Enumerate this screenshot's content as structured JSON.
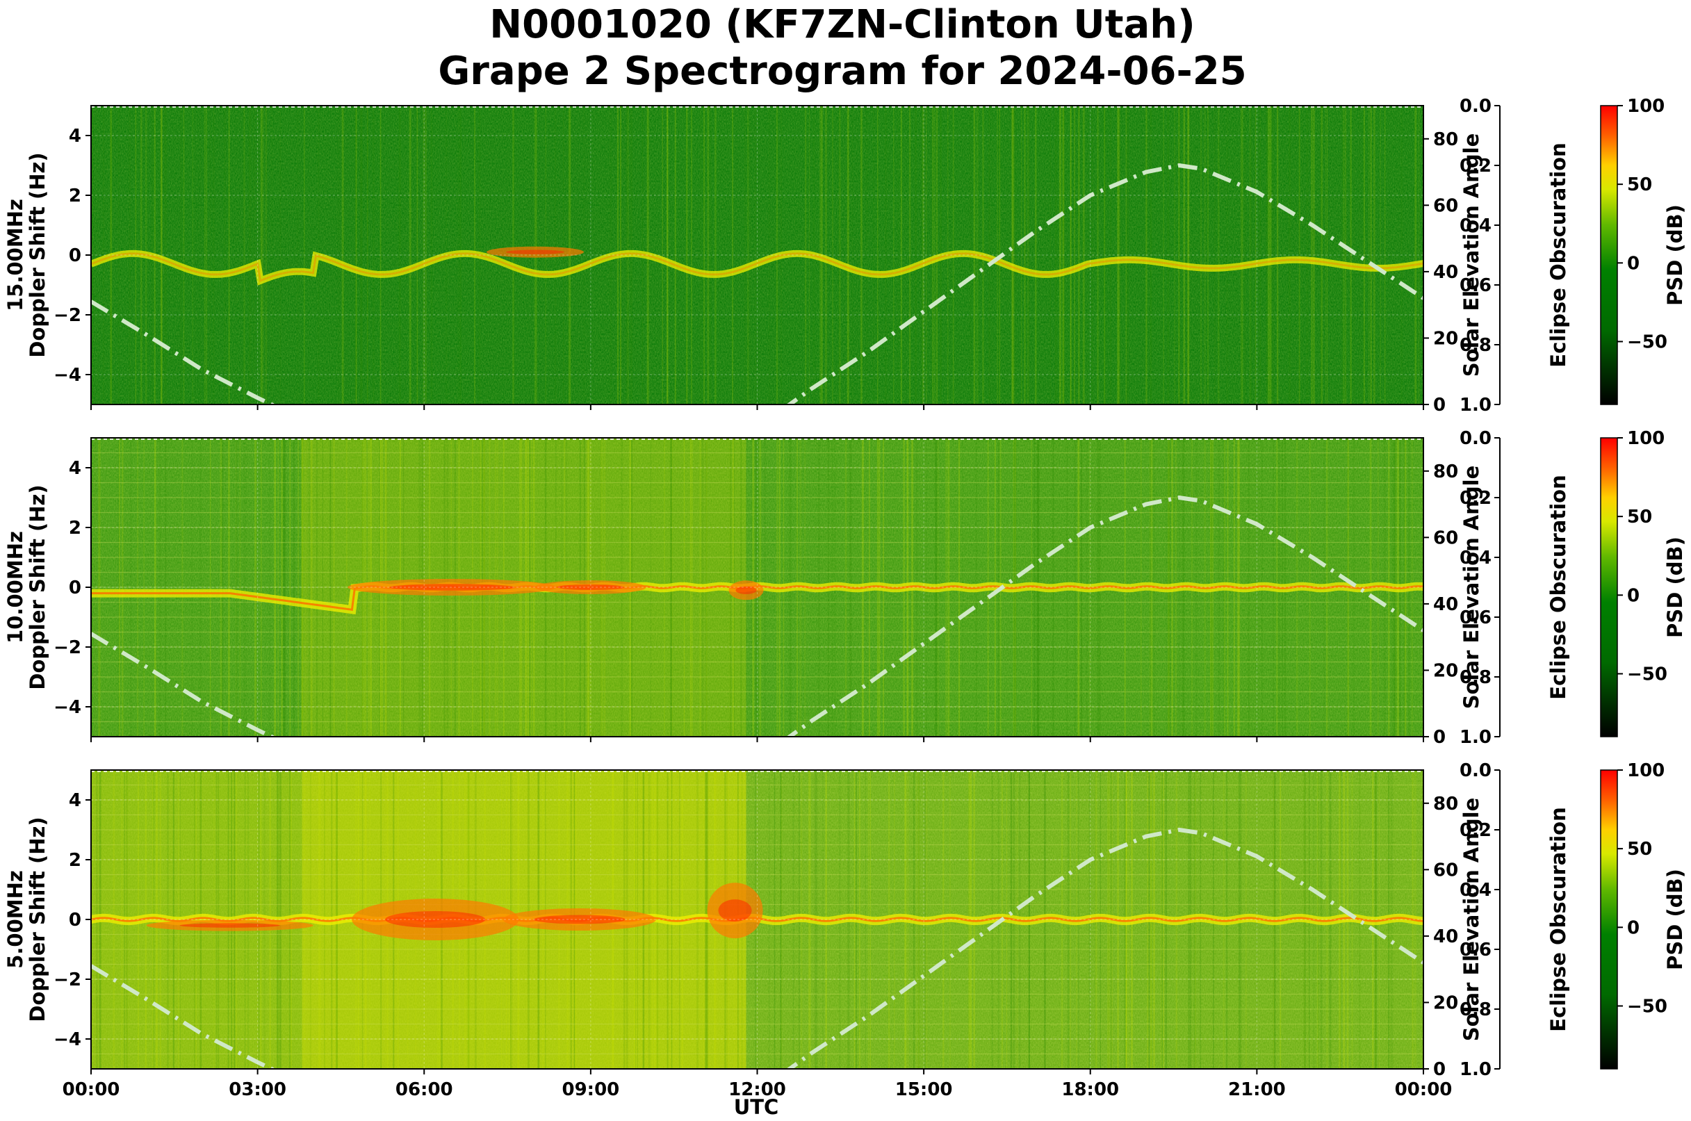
{
  "chart_data": {
    "type": "heatmap",
    "title": "N0001020 (KF7ZN-Clinton Utah)",
    "subtitle": "Grape 2 Spectrogram for 2024-06-25",
    "xlabel": "UTC",
    "x_ticks": [
      "00:00",
      "03:00",
      "06:00",
      "09:00",
      "12:00",
      "15:00",
      "18:00",
      "21:00",
      "00:00"
    ],
    "xlim_hours": [
      0,
      24
    ],
    "grid": true,
    "colors": {
      "psd_scale": [
        "#000000",
        "#004000",
        "#007800",
        "#3ca800",
        "#a8d800",
        "#f0f000",
        "#ffb000",
        "#ff5000",
        "#ff0000"
      ],
      "solar_curve": "#d0e8c8"
    },
    "panels": [
      {
        "ylabel_freq": "15.00MHz",
        "ylabel": "Doppler Shift (Hz)",
        "ylim": [
          -5,
          5
        ],
        "y_ticks": [
          -4,
          -2,
          0,
          2,
          4
        ],
        "right_label": "Solar Elevation Angle",
        "right_ylim": [
          0,
          90
        ],
        "right_ticks": [
          0,
          20,
          40,
          60,
          80
        ],
        "eclipse_label": "Eclipse Obscuration",
        "eclipse_ticks": [
          "0.0",
          "0.2",
          "0.4",
          "0.6",
          "0.8",
          "1.0"
        ],
        "colorbar_label": "PSD (dB)",
        "colorbar_range": [
          -90,
          100
        ],
        "colorbar_ticks": [
          100,
          50,
          0,
          -50
        ],
        "background_intensity": 0.28
      },
      {
        "ylabel_freq": "10.00MHz",
        "ylabel": "Doppler Shift (Hz)",
        "ylim": [
          -5,
          5
        ],
        "y_ticks": [
          -4,
          -2,
          0,
          2,
          4
        ],
        "right_label": "Solar Elevation Angle",
        "right_ylim": [
          0,
          90
        ],
        "right_ticks": [
          0,
          20,
          40,
          60,
          80
        ],
        "eclipse_label": "Eclipse Obscuration",
        "eclipse_ticks": [
          "0.0",
          "0.2",
          "0.4",
          "0.6",
          "0.8",
          "1.0"
        ],
        "colorbar_label": "PSD (dB)",
        "colorbar_range": [
          -90,
          100
        ],
        "colorbar_ticks": [
          100,
          50,
          0,
          -50
        ],
        "background_intensity": 0.42
      },
      {
        "ylabel_freq": "5.00MHz",
        "ylabel": "Doppler Shift (Hz)",
        "ylim": [
          -5,
          5
        ],
        "y_ticks": [
          -4,
          -2,
          0,
          2,
          4
        ],
        "right_label": "Solar Elevation Angle",
        "right_ylim": [
          0,
          90
        ],
        "right_ticks": [
          0,
          20,
          40,
          60,
          80
        ],
        "eclipse_label": "Eclipse Obscuration",
        "eclipse_ticks": [
          "0.0",
          "0.2",
          "0.4",
          "0.6",
          "0.8",
          "1.0"
        ],
        "colorbar_label": "PSD (dB)",
        "colorbar_range": [
          -90,
          100
        ],
        "colorbar_ticks": [
          100,
          50,
          0,
          -50
        ],
        "background_intensity": 0.5
      }
    ],
    "solar_elevation": {
      "utc_hours": [
        0,
        1,
        2,
        3,
        3.75,
        12.25,
        13,
        14,
        15,
        16,
        17,
        18,
        19,
        19.6,
        20,
        21,
        22,
        23,
        24
      ],
      "degrees": [
        31,
        21,
        10.5,
        2,
        -4,
        -4,
        5,
        16,
        28,
        40,
        52,
        63,
        70,
        72,
        71,
        64,
        54,
        43,
        32
      ]
    }
  }
}
